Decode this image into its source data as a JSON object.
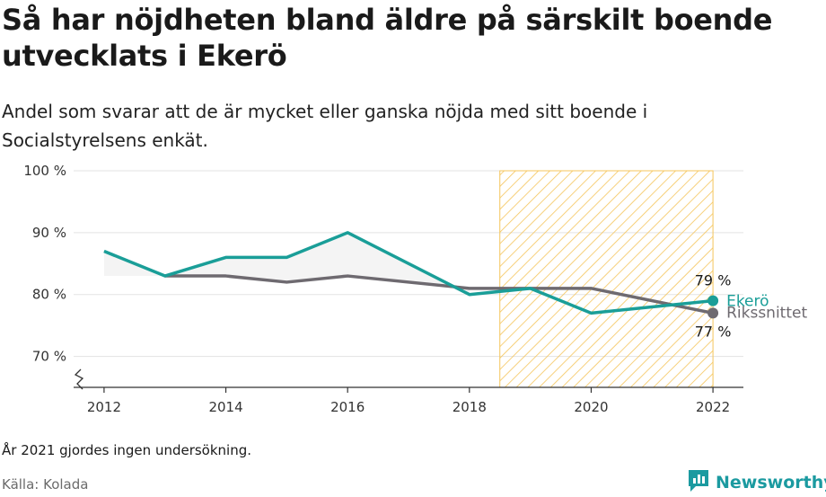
{
  "title": "Så har nöjdheten bland äldre på särskilt boende utvecklats i Ekerö",
  "subtitle": "Andel som svarar att de är mycket eller ganska nöjda med sitt boende i Socialstyrelsens enkät.",
  "note": "År 2021 gjordes ingen undersökning.",
  "source": "Källa: Kolada",
  "brand": {
    "name": "Newsworthy",
    "icon": "bar-chart-logo-icon"
  },
  "colors": {
    "ekero": "#1a9e98",
    "riks": "#6e6a70",
    "highlight": "#f5c55b",
    "grid": "#e3e3e3",
    "fill": "#ededed"
  },
  "chart_data": {
    "type": "line",
    "x": [
      2012,
      2013,
      2014,
      2015,
      2016,
      2018,
      2019,
      2020,
      2022
    ],
    "series": [
      {
        "name": "Ekerö",
        "values": [
          87,
          83,
          86,
          86,
          90,
          80,
          81,
          77,
          79
        ]
      },
      {
        "name": "Rikssnittet",
        "values": [
          null,
          83,
          83,
          82,
          83,
          81,
          81,
          81,
          77
        ]
      }
    ],
    "xticks": [
      2012,
      2014,
      2016,
      2018,
      2020,
      2022
    ],
    "xtick_labels": [
      "2012",
      "2014",
      "2016",
      "2018",
      "2020",
      "2022"
    ],
    "yticks": [
      70,
      80,
      90,
      100
    ],
    "ytick_labels": [
      "70 %",
      "80 %",
      "90 %",
      "100 %"
    ],
    "ylim": [
      65,
      100
    ],
    "xlim": [
      2011.5,
      2022.5
    ],
    "highlight_range": [
      2018.5,
      2022
    ],
    "y_axis_break": true,
    "end_labels": [
      {
        "series": "Ekerö",
        "label": "Ekerö",
        "value_label": "79 %"
      },
      {
        "series": "Rikssnittet",
        "label": "Rikssnittet",
        "value_label": "77 %"
      }
    ],
    "grid": true
  }
}
